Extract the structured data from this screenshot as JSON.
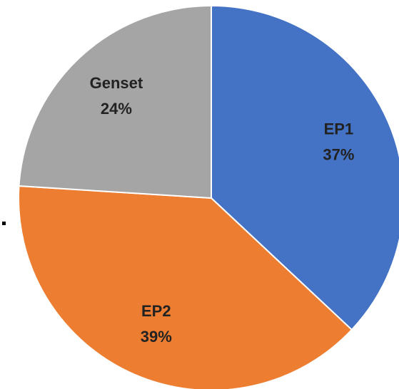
{
  "chart_data": {
    "type": "pie",
    "categories": [
      "EP1",
      "EP2",
      "Genset"
    ],
    "values": [
      37,
      39,
      24
    ],
    "value_labels": [
      "37%",
      "39%",
      "24%"
    ],
    "colors": [
      "#4472c4",
      "#ed7d31",
      "#a5a5a5"
    ]
  }
}
